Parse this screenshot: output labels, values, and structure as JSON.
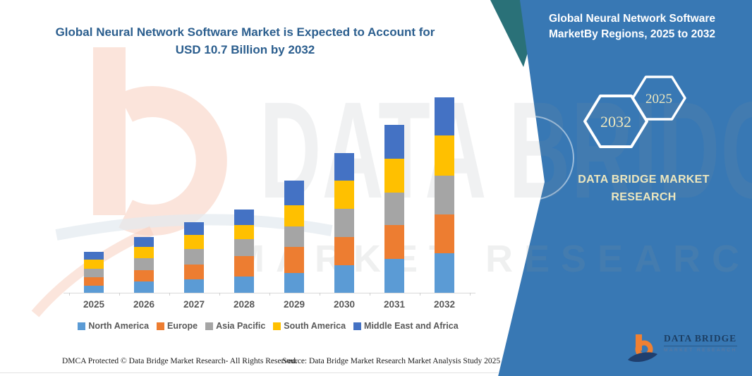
{
  "title": {
    "line1": "Global Neural Network Software Market is Expected to Account for",
    "line2": "USD 10.7 Billion by 2032"
  },
  "panel": {
    "heading": "Global Neural Network Software MarketBy Regions, 2025 to 2032",
    "hexagons": [
      {
        "label": "2032"
      },
      {
        "label": "2025"
      }
    ],
    "brand": "DATA BRIDGE MARKET RESEARCH",
    "logo": {
      "name": "DATA BRIDGE",
      "tagline": "MARKET RESEARCH"
    },
    "colors": {
      "background": "#3878B4",
      "accent_teal": "#2A7178",
      "heading_text": "#FFFFFF",
      "gold_text": "#EDE7BE"
    }
  },
  "watermark": {
    "line1": "DATA BRIDGE",
    "line2": "MARKET RESEARCH"
  },
  "chart_data": {
    "type": "bar",
    "stacked": true,
    "title": "Global Neural Network Software Market is Expected to Account for USD 10.7 Billion by 2032",
    "unit": "USD Billion",
    "categories": [
      "2025",
      "2026",
      "2027",
      "2028",
      "2029",
      "2030",
      "2031",
      "2032"
    ],
    "series": [
      {
        "name": "North America",
        "color": "#5B9BD5",
        "values": [
          0.4,
          0.6,
          0.75,
          0.9,
          1.1,
          1.5,
          1.85,
          2.15
        ]
      },
      {
        "name": "Europe",
        "color": "#ED7D31",
        "values": [
          0.45,
          0.65,
          0.8,
          1.1,
          1.4,
          1.55,
          1.85,
          2.15
        ]
      },
      {
        "name": "Asia Pacific",
        "color": "#A5A5A5",
        "values": [
          0.45,
          0.65,
          0.85,
          0.95,
          1.15,
          1.55,
          1.8,
          2.1
        ]
      },
      {
        "name": "South America",
        "color": "#FFC000",
        "values": [
          0.5,
          0.6,
          0.75,
          0.75,
          1.15,
          1.55,
          1.85,
          2.2
        ]
      },
      {
        "name": "Middle East and Africa",
        "color": "#4472C4",
        "values": [
          0.45,
          0.55,
          0.7,
          0.85,
          1.35,
          1.5,
          1.85,
          2.1
        ]
      }
    ],
    "totals": [
      2.25,
      3.05,
      3.85,
      4.55,
      6.15,
      7.65,
      9.2,
      10.7
    ],
    "ylim": [
      0,
      10.7
    ],
    "xlabel": "",
    "ylabel": "",
    "grid": false,
    "legend_position": "bottom"
  },
  "footer": {
    "dmca": "DMCA Protected © Data Bridge Market Research- All Rights Reserved.",
    "source": "Source: Data Bridge Market Research Market Analysis Study 2025"
  }
}
